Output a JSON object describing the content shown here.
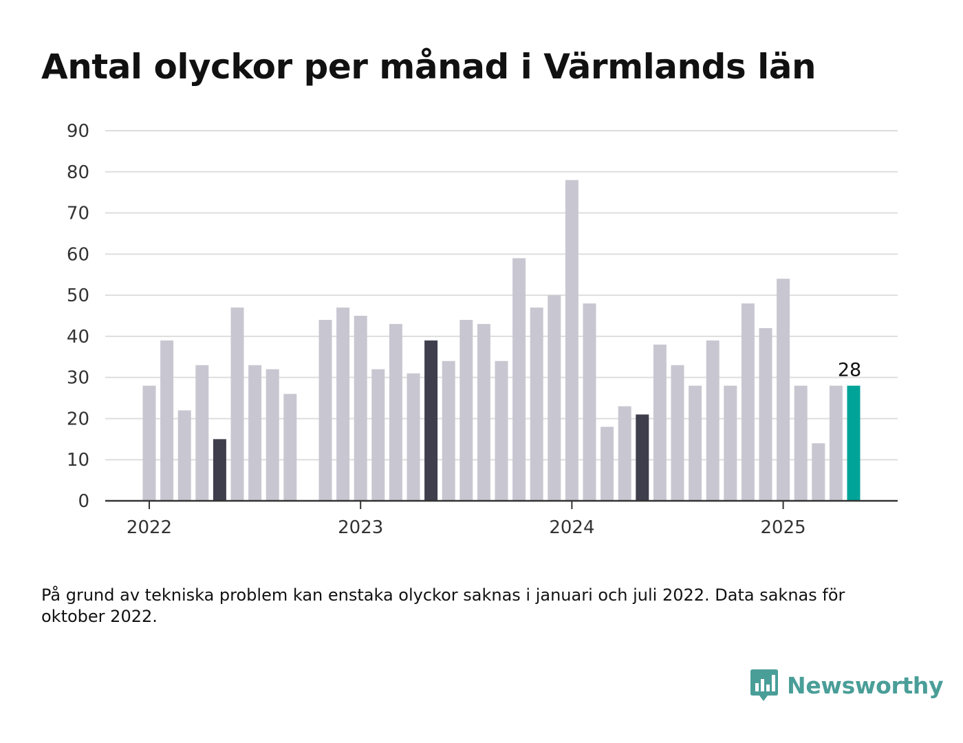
{
  "title": "Antal olyckor per månad i Värmlands län",
  "note": "På grund av tekniska problem kan enstaka olyckor saknas i januari och juli 2022. Data saknas för oktober 2022.",
  "brand": {
    "name": "Newsworthy",
    "color": "#4a9e98",
    "icon": "bar-chart-bubble-icon"
  },
  "chart_data": {
    "type": "bar",
    "x_start": "2022-01",
    "x_end": "2025-05",
    "xtick_labels": [
      "2022",
      "2023",
      "2024",
      "2025"
    ],
    "ylim": [
      0,
      90
    ],
    "yticks": [
      0,
      10,
      20,
      30,
      40,
      50,
      60,
      70,
      80,
      90
    ],
    "grid": true,
    "colors": {
      "default": "#c8c7d1",
      "highlight_dark": "#3f3e4d",
      "latest": "#00a398"
    },
    "bars": [
      {
        "month": "2022-01",
        "value": 28,
        "color": "default"
      },
      {
        "month": "2022-02",
        "value": 39,
        "color": "default"
      },
      {
        "month": "2022-03",
        "value": 22,
        "color": "default"
      },
      {
        "month": "2022-04",
        "value": 33,
        "color": "default"
      },
      {
        "month": "2022-05",
        "value": 15,
        "color": "highlight_dark"
      },
      {
        "month": "2022-06",
        "value": 47,
        "color": "default"
      },
      {
        "month": "2022-07",
        "value": 33,
        "color": "default"
      },
      {
        "month": "2022-08",
        "value": 32,
        "color": "default"
      },
      {
        "month": "2022-09",
        "value": 26,
        "color": "default"
      },
      {
        "month": "2022-10",
        "value": null,
        "color": "default"
      },
      {
        "month": "2022-11",
        "value": 44,
        "color": "default"
      },
      {
        "month": "2022-12",
        "value": 47,
        "color": "default"
      },
      {
        "month": "2023-01",
        "value": 45,
        "color": "default"
      },
      {
        "month": "2023-02",
        "value": 32,
        "color": "default"
      },
      {
        "month": "2023-03",
        "value": 43,
        "color": "default"
      },
      {
        "month": "2023-04",
        "value": 31,
        "color": "default"
      },
      {
        "month": "2023-05",
        "value": 39,
        "color": "highlight_dark"
      },
      {
        "month": "2023-06",
        "value": 34,
        "color": "default"
      },
      {
        "month": "2023-07",
        "value": 44,
        "color": "default"
      },
      {
        "month": "2023-08",
        "value": 43,
        "color": "default"
      },
      {
        "month": "2023-09",
        "value": 34,
        "color": "default"
      },
      {
        "month": "2023-10",
        "value": 59,
        "color": "default"
      },
      {
        "month": "2023-11",
        "value": 47,
        "color": "default"
      },
      {
        "month": "2023-12",
        "value": 50,
        "color": "default"
      },
      {
        "month": "2024-01",
        "value": 78,
        "color": "default"
      },
      {
        "month": "2024-02",
        "value": 48,
        "color": "default"
      },
      {
        "month": "2024-03",
        "value": 18,
        "color": "default"
      },
      {
        "month": "2024-04",
        "value": 23,
        "color": "default"
      },
      {
        "month": "2024-05",
        "value": 21,
        "color": "highlight_dark"
      },
      {
        "month": "2024-06",
        "value": 38,
        "color": "default"
      },
      {
        "month": "2024-07",
        "value": 33,
        "color": "default"
      },
      {
        "month": "2024-08",
        "value": 28,
        "color": "default"
      },
      {
        "month": "2024-09",
        "value": 39,
        "color": "default"
      },
      {
        "month": "2024-10",
        "value": 28,
        "color": "default"
      },
      {
        "month": "2024-11",
        "value": 48,
        "color": "default"
      },
      {
        "month": "2024-12",
        "value": 42,
        "color": "default"
      },
      {
        "month": "2025-01",
        "value": 54,
        "color": "default"
      },
      {
        "month": "2025-02",
        "value": 28,
        "color": "default"
      },
      {
        "month": "2025-03",
        "value": 14,
        "color": "default"
      },
      {
        "month": "2025-04",
        "value": 28,
        "color": "default"
      },
      {
        "month": "2025-05",
        "value": 28,
        "color": "latest"
      }
    ],
    "annotations": [
      {
        "month": "2025-05",
        "text": "28"
      }
    ]
  }
}
